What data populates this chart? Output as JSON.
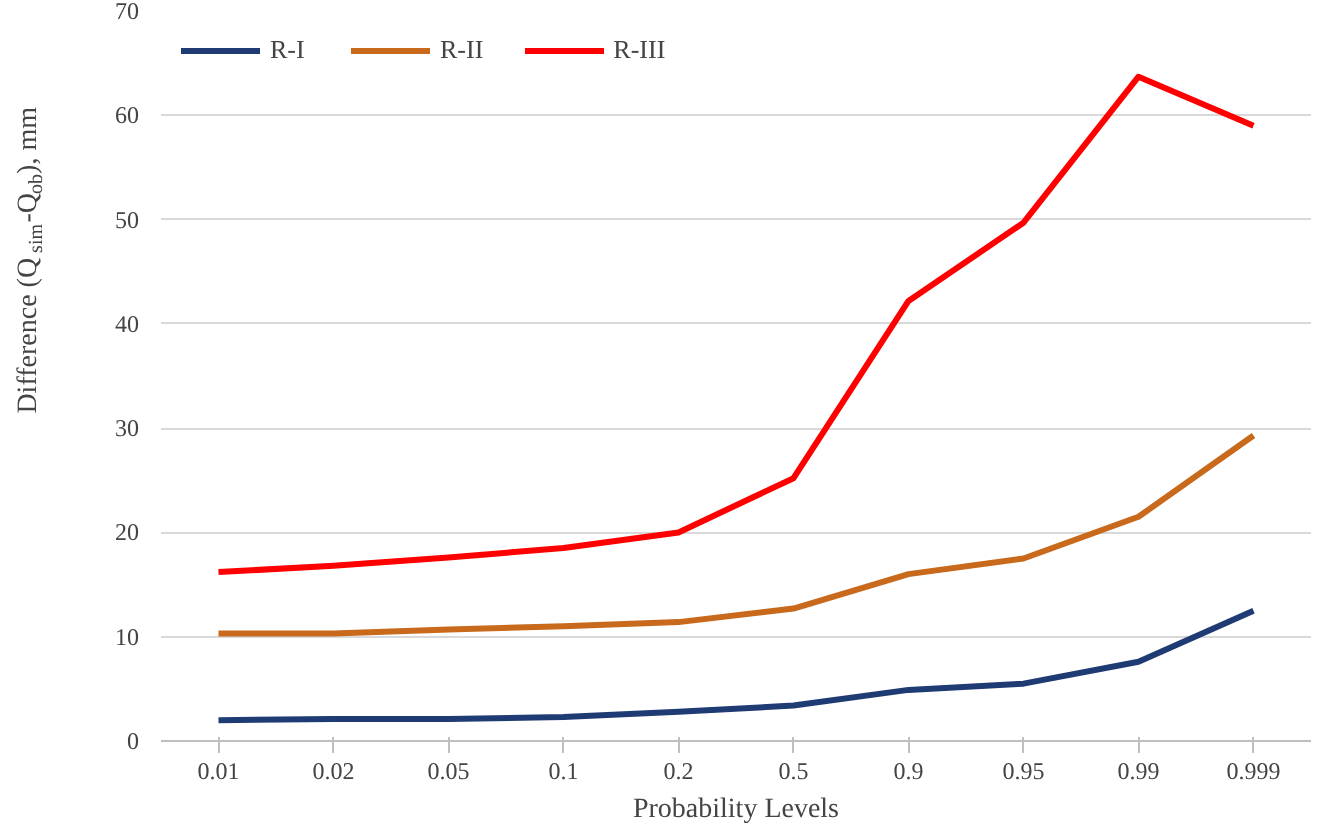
{
  "chart_data": {
    "type": "line",
    "xlabel": "Probability Levels",
    "ylabel": "Difference (Q$_{sim}$-Q$_{ob}$), mm",
    "categories": [
      "0.01",
      "0.02",
      "0.05",
      "0.1",
      "0.2",
      "0.5",
      "0.9",
      "0.95",
      "0.99",
      "0.999"
    ],
    "series": [
      {
        "name": "R-I",
        "color": "#1f3b73",
        "values": [
          2.0,
          2.1,
          2.1,
          2.3,
          2.8,
          3.4,
          4.9,
          5.5,
          7.6,
          12.5
        ]
      },
      {
        "name": "R-II",
        "color": "#c8691c",
        "values": [
          10.3,
          10.3,
          10.7,
          11.0,
          11.4,
          12.7,
          16.0,
          17.5,
          21.5,
          29.3
        ]
      },
      {
        "name": "R-III",
        "color": "#ff0000",
        "values": [
          16.2,
          16.8,
          17.6,
          18.5,
          20.0,
          25.2,
          42.2,
          49.7,
          63.7,
          59.0
        ]
      }
    ],
    "ylim": [
      0,
      70
    ],
    "yticks": [
      0,
      10,
      20,
      30,
      40,
      50,
      60,
      70
    ],
    "grid": "y",
    "legend": "top left",
    "marker": "none",
    "line_style": "solid"
  }
}
